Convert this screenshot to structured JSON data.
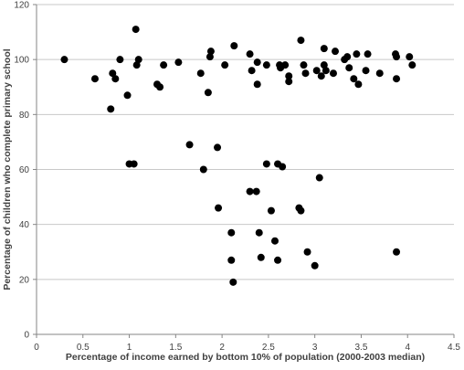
{
  "chart_data": {
    "type": "scatter",
    "xlabel": "Percentage of income earned by bottom 10% of population (2000-2003 median)",
    "ylabel": "Percentage of children who complete primary school",
    "xlim": [
      0,
      4.5
    ],
    "ylim": [
      0,
      120
    ],
    "x_ticks": [
      "0",
      "0.5",
      "1",
      "1.5",
      "2",
      "2.5",
      "3",
      "3.5",
      "4",
      "4.5"
    ],
    "y_ticks": [
      "0",
      "20",
      "40",
      "60",
      "80",
      "100",
      "120"
    ],
    "grid": "horizontal",
    "point_color": "#000000",
    "series": [
      {
        "points": [
          [
            0.3,
            100
          ],
          [
            0.63,
            93
          ],
          [
            0.8,
            82
          ],
          [
            0.82,
            95
          ],
          [
            0.85,
            93
          ],
          [
            0.9,
            100
          ],
          [
            0.98,
            87
          ],
          [
            1.0,
            62
          ],
          [
            1.05,
            62
          ],
          [
            1.07,
            111
          ],
          [
            1.08,
            98
          ],
          [
            1.1,
            100
          ],
          [
            1.3,
            91
          ],
          [
            1.33,
            90
          ],
          [
            1.37,
            98
          ],
          [
            1.53,
            99
          ],
          [
            1.65,
            69
          ],
          [
            1.77,
            95
          ],
          [
            1.8,
            60
          ],
          [
            1.85,
            88
          ],
          [
            1.87,
            101
          ],
          [
            1.88,
            103
          ],
          [
            1.95,
            68
          ],
          [
            1.96,
            46
          ],
          [
            2.03,
            98
          ],
          [
            2.1,
            37
          ],
          [
            2.1,
            27
          ],
          [
            2.12,
            19
          ],
          [
            2.13,
            105
          ],
          [
            2.3,
            52
          ],
          [
            2.3,
            102
          ],
          [
            2.32,
            96
          ],
          [
            2.37,
            52
          ],
          [
            2.38,
            91
          ],
          [
            2.38,
            99
          ],
          [
            2.4,
            37
          ],
          [
            2.42,
            28
          ],
          [
            2.48,
            62
          ],
          [
            2.48,
            98
          ],
          [
            2.53,
            45
          ],
          [
            2.57,
            34
          ],
          [
            2.6,
            27
          ],
          [
            2.6,
            62
          ],
          [
            2.62,
            98
          ],
          [
            2.63,
            97
          ],
          [
            2.65,
            61
          ],
          [
            2.68,
            98
          ],
          [
            2.72,
            94
          ],
          [
            2.72,
            92
          ],
          [
            2.83,
            46
          ],
          [
            2.85,
            107
          ],
          [
            2.85,
            45
          ],
          [
            2.88,
            98
          ],
          [
            2.9,
            95
          ],
          [
            2.92,
            30
          ],
          [
            3.0,
            25
          ],
          [
            3.02,
            96
          ],
          [
            3.05,
            57
          ],
          [
            3.07,
            94
          ],
          [
            3.1,
            104
          ],
          [
            3.1,
            98
          ],
          [
            3.12,
            96
          ],
          [
            3.2,
            95
          ],
          [
            3.22,
            103
          ],
          [
            3.32,
            100
          ],
          [
            3.35,
            101
          ],
          [
            3.37,
            97
          ],
          [
            3.42,
            93
          ],
          [
            3.45,
            102
          ],
          [
            3.47,
            91
          ],
          [
            3.55,
            96
          ],
          [
            3.57,
            102
          ],
          [
            3.7,
            95
          ],
          [
            3.87,
            102
          ],
          [
            3.88,
            101
          ],
          [
            3.88,
            93
          ],
          [
            3.88,
            30
          ],
          [
            4.02,
            101
          ],
          [
            4.05,
            98
          ]
        ]
      }
    ]
  }
}
